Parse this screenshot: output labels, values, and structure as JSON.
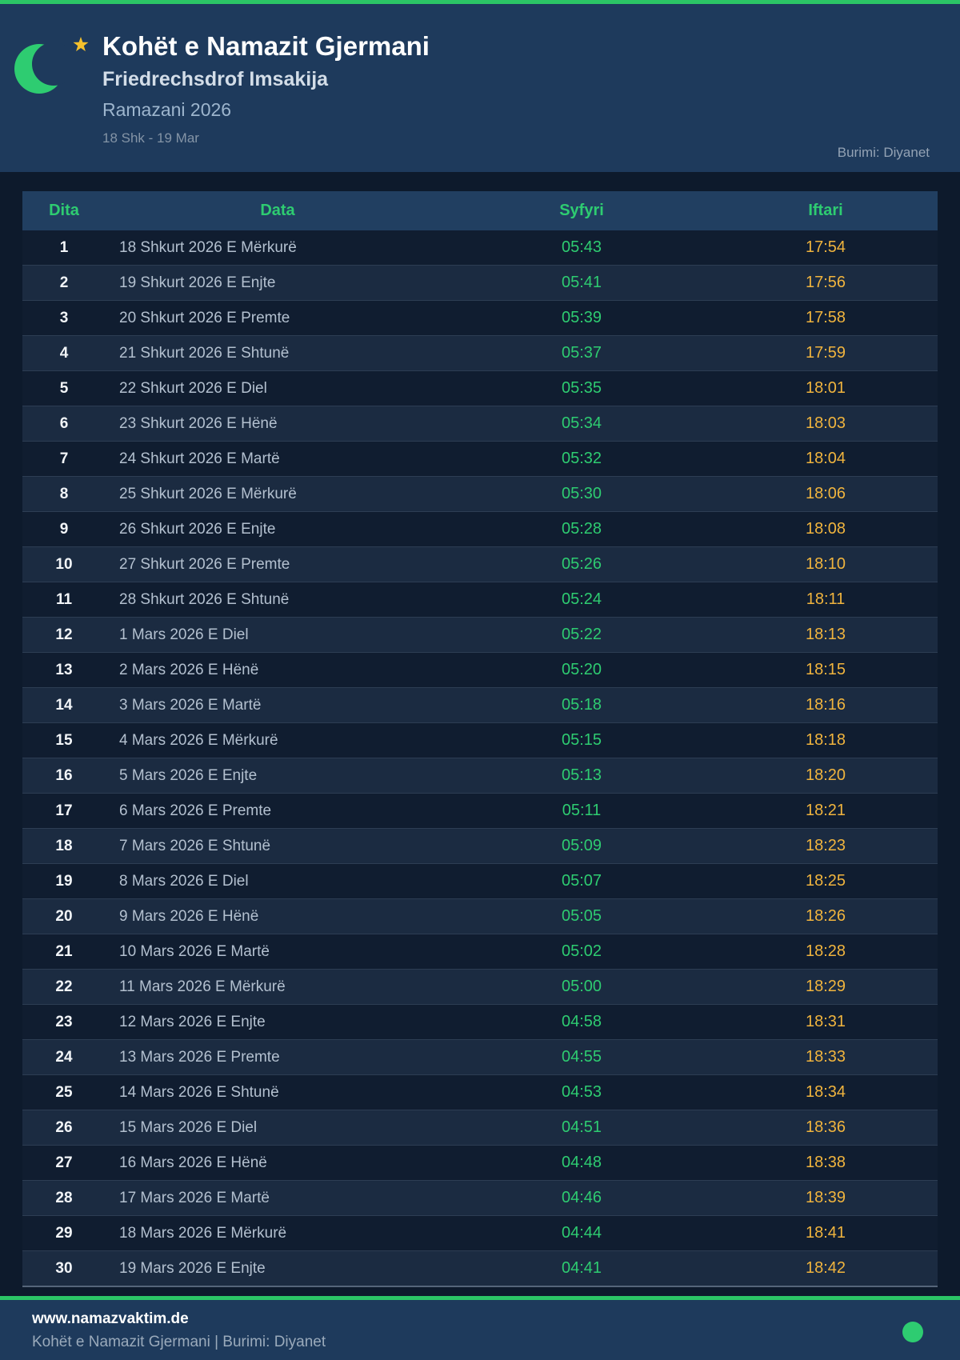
{
  "header": {
    "title": "Kohët e Namazit Gjermani",
    "subtitle": "Friedrechsdrof Imsakija",
    "season": "Ramazani 2026",
    "date_range": "18 Shk - 19 Mar",
    "source": "Burimi: Diyanet"
  },
  "icons": {
    "crescent_moon": "crescent-moon-icon",
    "star": "star-icon",
    "footer_dot": "green-dot-icon"
  },
  "colors": {
    "accent_green": "#2bc566",
    "text_green": "#2ecc71",
    "text_gold": "#f0b43e",
    "header_bg": "#1e3a5c",
    "page_bg": "#0d1a2c",
    "row_odd": "#101d30",
    "row_even": "#1b2b41"
  },
  "table": {
    "columns": [
      "Dita",
      "Data",
      "Syfyri",
      "Iftari"
    ],
    "rows": [
      [
        "1",
        "18 Shkurt 2026 E Mërkurë",
        "05:43",
        "17:54"
      ],
      [
        "2",
        "19 Shkurt 2026 E Enjte",
        "05:41",
        "17:56"
      ],
      [
        "3",
        "20 Shkurt 2026 E Premte",
        "05:39",
        "17:58"
      ],
      [
        "4",
        "21 Shkurt 2026 E Shtunë",
        "05:37",
        "17:59"
      ],
      [
        "5",
        "22 Shkurt 2026 E Diel",
        "05:35",
        "18:01"
      ],
      [
        "6",
        "23 Shkurt 2026 E Hënë",
        "05:34",
        "18:03"
      ],
      [
        "7",
        "24 Shkurt 2026 E Martë",
        "05:32",
        "18:04"
      ],
      [
        "8",
        "25 Shkurt 2026 E Mërkurë",
        "05:30",
        "18:06"
      ],
      [
        "9",
        "26 Shkurt 2026 E Enjte",
        "05:28",
        "18:08"
      ],
      [
        "10",
        "27 Shkurt 2026 E Premte",
        "05:26",
        "18:10"
      ],
      [
        "11",
        "28 Shkurt 2026 E Shtunë",
        "05:24",
        "18:11"
      ],
      [
        "12",
        "1 Mars 2026 E Diel",
        "05:22",
        "18:13"
      ],
      [
        "13",
        "2 Mars 2026 E Hënë",
        "05:20",
        "18:15"
      ],
      [
        "14",
        "3 Mars 2026 E Martë",
        "05:18",
        "18:16"
      ],
      [
        "15",
        "4 Mars 2026 E Mërkurë",
        "05:15",
        "18:18"
      ],
      [
        "16",
        "5 Mars 2026 E Enjte",
        "05:13",
        "18:20"
      ],
      [
        "17",
        "6 Mars 2026 E Premte",
        "05:11",
        "18:21"
      ],
      [
        "18",
        "7 Mars 2026 E Shtunë",
        "05:09",
        "18:23"
      ],
      [
        "19",
        "8 Mars 2026 E Diel",
        "05:07",
        "18:25"
      ],
      [
        "20",
        "9 Mars 2026 E Hënë",
        "05:05",
        "18:26"
      ],
      [
        "21",
        "10 Mars 2026 E Martë",
        "05:02",
        "18:28"
      ],
      [
        "22",
        "11 Mars 2026 E Mërkurë",
        "05:00",
        "18:29"
      ],
      [
        "23",
        "12 Mars 2026 E Enjte",
        "04:58",
        "18:31"
      ],
      [
        "24",
        "13 Mars 2026 E Premte",
        "04:55",
        "18:33"
      ],
      [
        "25",
        "14 Mars 2026 E Shtunë",
        "04:53",
        "18:34"
      ],
      [
        "26",
        "15 Mars 2026 E Diel",
        "04:51",
        "18:36"
      ],
      [
        "27",
        "16 Mars 2026 E Hënë",
        "04:48",
        "18:38"
      ],
      [
        "28",
        "17 Mars 2026 E Martë",
        "04:46",
        "18:39"
      ],
      [
        "29",
        "18 Mars 2026 E Mërkurë",
        "04:44",
        "18:41"
      ],
      [
        "30",
        "19 Mars 2026 E Enjte",
        "04:41",
        "18:42"
      ]
    ]
  },
  "footer": {
    "website": "www.namazvaktim.de",
    "tagline": "Kohët e Namazit Gjermani | Burimi: Diyanet"
  }
}
